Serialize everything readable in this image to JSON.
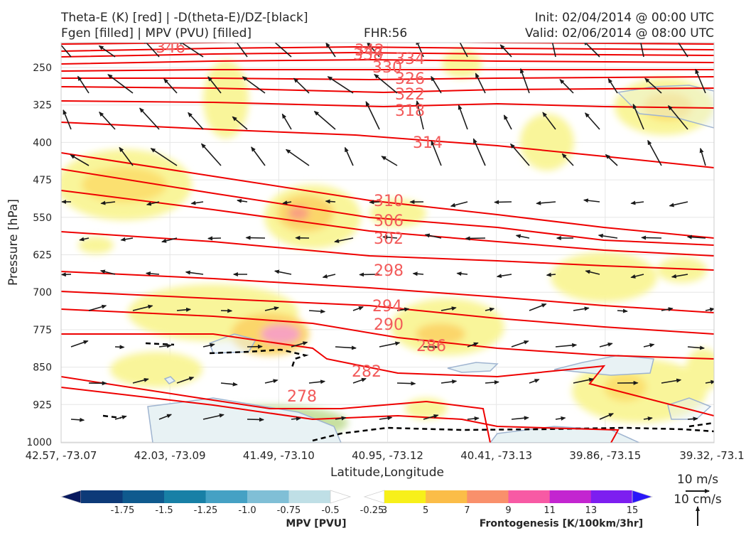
{
  "header": {
    "title_left_line1": "Theta-E (K) [red] | -D(theta-E)/DZ-[black]",
    "title_left_line2": "Fgen [filled] | MPV (PVU) [filled]",
    "fhr": "FHR:56",
    "init": "Init: 02/04/2014 @ 00:00 UTC",
    "valid": "Valid: 02/06/2014 @ 08:00 UTC"
  },
  "chart_data": {
    "type": "cross-section",
    "xlabel": "Latitude,Longitude",
    "ylabel": "Pressure [hPa]",
    "x_ticks": [
      "42.57, -73.07",
      "42.03, -73.09",
      "41.49, -73.10",
      "40.95, -73.12",
      "40.41, -73.13",
      "39.86, -73.15",
      "39.32, -73.1"
    ],
    "y_ticks": [
      250,
      325,
      400,
      475,
      550,
      625,
      700,
      775,
      850,
      925,
      1000
    ],
    "ylim": [
      1000,
      190
    ],
    "grid": true,
    "theta_e_contours": {
      "color": "#ee0000",
      "labels": [
        "346",
        "342",
        "338",
        "334",
        "330",
        "326",
        "322",
        "318",
        "314",
        "310",
        "306",
        "302",
        "298",
        "294",
        "290",
        "286",
        "282",
        "278"
      ]
    },
    "vector_reference": {
      "horizontal": "10 m/s",
      "vertical": "10 cm/s"
    },
    "colorbars": [
      {
        "title": "MPV [PVU]",
        "tick_labels": [
          "-1.75",
          "-1.5",
          "-1.25",
          "-1.0",
          "-0.75",
          "-0.5",
          "-0.25"
        ],
        "colors": [
          "#08195e",
          "#0d3a78",
          "#0f5a8e",
          "#1880a6",
          "#45a1c4",
          "#80bfd6",
          "#bfdfe6",
          "#ffffff"
        ]
      },
      {
        "title": "Frontogenesis [K/100km/3hr]",
        "tick_labels": [
          "3",
          "5",
          "7",
          "9",
          "11",
          "13",
          "15"
        ],
        "colors": [
          "#ffffff",
          "#f7f01a",
          "#fbbd48",
          "#f9906b",
          "#f75aa4",
          "#c325d0",
          "#7d1ef0",
          "#2a16f8"
        ]
      }
    ]
  }
}
